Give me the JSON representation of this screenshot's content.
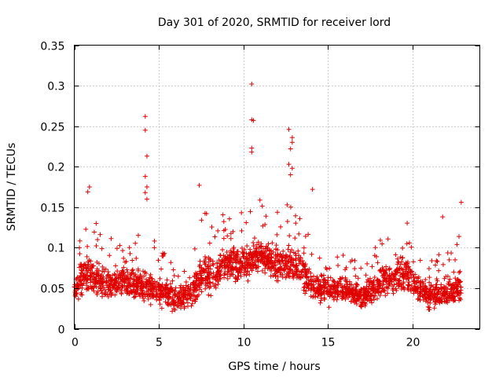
{
  "chart_data": {
    "type": "scatter",
    "title": "Day 301 of 2020, SRMTID for receiver lord",
    "xlabel": "GPS time / hours",
    "ylabel": "SRMTID / TECUs",
    "xlim": [
      0,
      24
    ],
    "ylim": [
      0,
      0.35
    ],
    "xticks": [
      0,
      5,
      10,
      15,
      20
    ],
    "yticks": [
      0,
      0.05,
      0.1,
      0.15,
      0.2,
      0.25,
      0.3,
      0.35
    ],
    "xtick_labels": [
      "0",
      "5",
      "10",
      "15",
      "20"
    ],
    "ytick_labels": [
      "0",
      "0.05",
      "0.1",
      "0.15",
      "0.2",
      "0.25",
      "0.3",
      "0.35"
    ],
    "grid": true,
    "marker": "+",
    "color": "#e00000",
    "series": [
      {
        "name": "SRMTID",
        "notable_points": [
          {
            "x": 4.2,
            "y": 0.262
          },
          {
            "x": 4.2,
            "y": 0.245
          },
          {
            "x": 4.3,
            "y": 0.213
          },
          {
            "x": 4.2,
            "y": 0.188
          },
          {
            "x": 4.3,
            "y": 0.175
          },
          {
            "x": 4.2,
            "y": 0.168
          },
          {
            "x": 4.3,
            "y": 0.16
          },
          {
            "x": 10.5,
            "y": 0.302
          },
          {
            "x": 10.5,
            "y": 0.258
          },
          {
            "x": 10.6,
            "y": 0.257
          },
          {
            "x": 10.5,
            "y": 0.223
          },
          {
            "x": 10.5,
            "y": 0.218
          },
          {
            "x": 12.7,
            "y": 0.246
          },
          {
            "x": 12.9,
            "y": 0.236
          },
          {
            "x": 12.9,
            "y": 0.23
          },
          {
            "x": 12.8,
            "y": 0.222
          },
          {
            "x": 12.7,
            "y": 0.203
          },
          {
            "x": 12.9,
            "y": 0.198
          },
          {
            "x": 12.8,
            "y": 0.19
          },
          {
            "x": 0.9,
            "y": 0.175
          },
          {
            "x": 0.8,
            "y": 0.169
          },
          {
            "x": 7.4,
            "y": 0.177
          },
          {
            "x": 14.1,
            "y": 0.172
          },
          {
            "x": 22.9,
            "y": 0.156
          },
          {
            "x": 21.8,
            "y": 0.138
          }
        ],
        "profile": [
          {
            "x": 0.0,
            "low": 0.025,
            "high": 0.06,
            "peak": 0.08
          },
          {
            "x": 0.5,
            "low": 0.035,
            "high": 0.1,
            "peak": 0.13
          },
          {
            "x": 1.0,
            "low": 0.035,
            "high": 0.1,
            "peak": 0.14
          },
          {
            "x": 2.0,
            "low": 0.03,
            "high": 0.08,
            "peak": 0.12
          },
          {
            "x": 3.0,
            "low": 0.035,
            "high": 0.08,
            "peak": 0.1
          },
          {
            "x": 4.0,
            "low": 0.025,
            "high": 0.08,
            "peak": 0.12
          },
          {
            "x": 5.0,
            "low": 0.025,
            "high": 0.07,
            "peak": 0.11
          },
          {
            "x": 6.0,
            "low": 0.015,
            "high": 0.06,
            "peak": 0.08
          },
          {
            "x": 7.0,
            "low": 0.02,
            "high": 0.07,
            "peak": 0.09
          },
          {
            "x": 7.5,
            "low": 0.03,
            "high": 0.1,
            "peak": 0.15
          },
          {
            "x": 8.5,
            "low": 0.04,
            "high": 0.1,
            "peak": 0.13
          },
          {
            "x": 9.0,
            "low": 0.05,
            "high": 0.11,
            "peak": 0.15
          },
          {
            "x": 10.0,
            "low": 0.05,
            "high": 0.11,
            "peak": 0.15
          },
          {
            "x": 11.0,
            "low": 0.06,
            "high": 0.12,
            "peak": 0.16
          },
          {
            "x": 12.0,
            "low": 0.05,
            "high": 0.11,
            "peak": 0.15
          },
          {
            "x": 13.0,
            "low": 0.05,
            "high": 0.11,
            "peak": 0.16
          },
          {
            "x": 14.0,
            "low": 0.03,
            "high": 0.08,
            "peak": 0.11
          },
          {
            "x": 15.0,
            "low": 0.025,
            "high": 0.07,
            "peak": 0.09
          },
          {
            "x": 16.0,
            "low": 0.03,
            "high": 0.07,
            "peak": 0.11
          },
          {
            "x": 17.0,
            "low": 0.02,
            "high": 0.06,
            "peak": 0.08
          },
          {
            "x": 18.0,
            "low": 0.03,
            "high": 0.08,
            "peak": 0.11
          },
          {
            "x": 19.0,
            "low": 0.04,
            "high": 0.09,
            "peak": 0.12
          },
          {
            "x": 19.7,
            "low": 0.04,
            "high": 0.1,
            "peak": 0.14
          },
          {
            "x": 20.3,
            "low": 0.03,
            "high": 0.07,
            "peak": 0.09
          },
          {
            "x": 21.0,
            "low": 0.02,
            "high": 0.06,
            "peak": 0.08
          },
          {
            "x": 22.0,
            "low": 0.02,
            "high": 0.07,
            "peak": 0.11
          },
          {
            "x": 22.9,
            "low": 0.025,
            "high": 0.08,
            "peak": 0.12
          }
        ],
        "approx_point_count": 2400
      }
    ]
  }
}
